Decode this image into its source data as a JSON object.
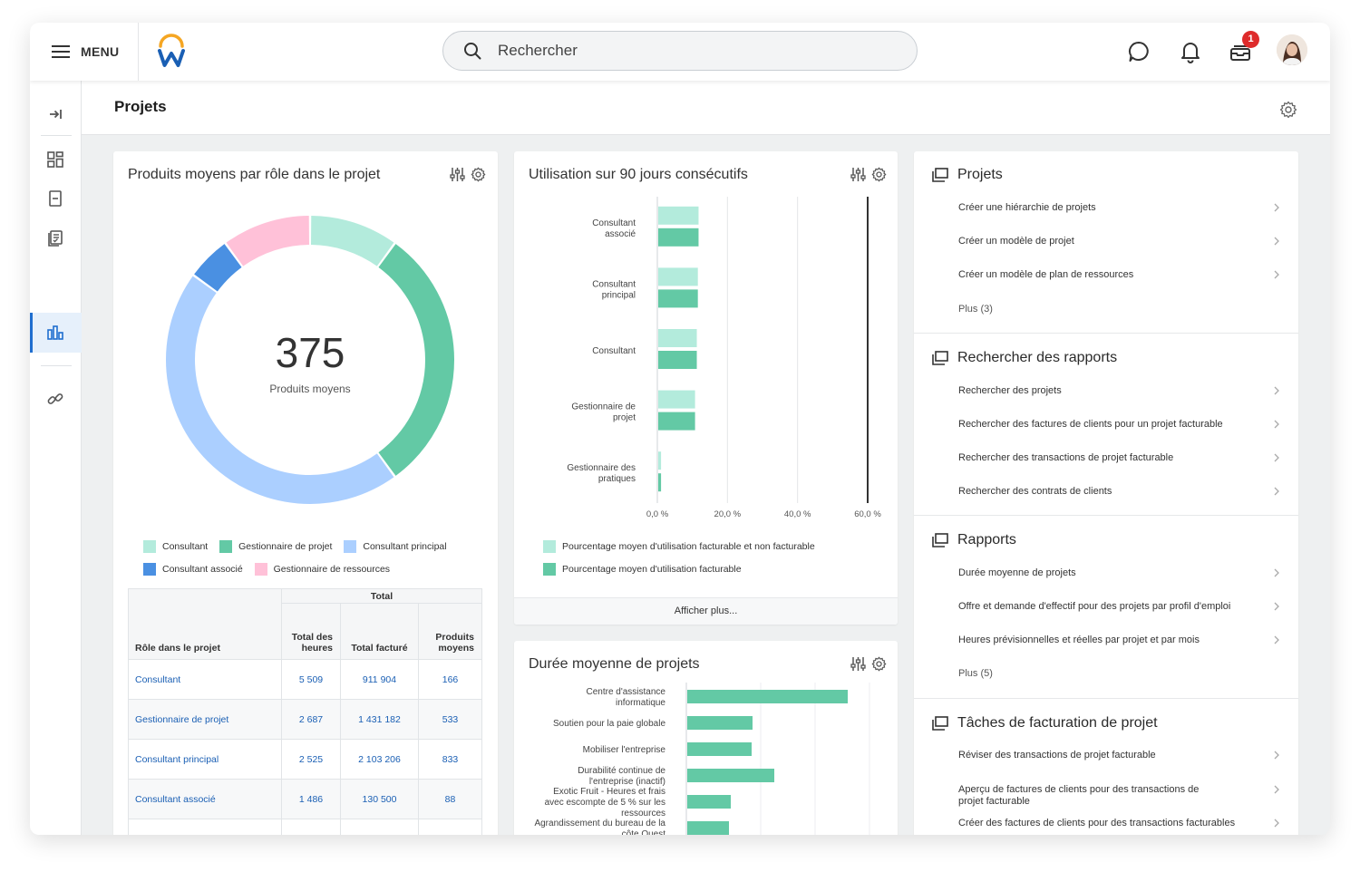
{
  "topbar": {
    "menu_label": "MENU",
    "search_placeholder": "Rechercher",
    "inbox_badge": "1"
  },
  "page": {
    "title": "Projets"
  },
  "colors": {
    "consultant": "#b3ebdc",
    "gestionnaire_projet": "#63c9a5",
    "consultant_principal": "#abcfff",
    "consultant_associe": "#4a90e2",
    "gestionnaire_ressources": "#ffc1d8",
    "accent": "#1f6ecf"
  },
  "donut_card": {
    "title": "Produits moyens par rôle dans le projet",
    "center_value": "375",
    "center_label": "Produits moyens",
    "legend": [
      "Consultant",
      "Gestionnaire de projet",
      "Consultant principal",
      "Consultant associé",
      "Gestionnaire de ressources"
    ],
    "table": {
      "group_header": "Total",
      "headers": [
        "Rôle dans le projet",
        "Total des heures",
        "Total facturé",
        "Produits moyens"
      ],
      "rows": [
        {
          "role": "Consultant",
          "hours": "5 509",
          "billed": "911 904",
          "avg": "166"
        },
        {
          "role": "Gestionnaire de projet",
          "hours": "2 687",
          "billed": "1 431 182",
          "avg": "533"
        },
        {
          "role": "Consultant principal",
          "hours": "2 525",
          "billed": "2 103 206",
          "avg": "833"
        },
        {
          "role": "Consultant associé",
          "hours": "1 486",
          "billed": "130 500",
          "avg": "88"
        }
      ]
    }
  },
  "utilisation_card": {
    "title": "Utilisation sur 90 jours consécutifs",
    "legend": [
      "Pourcentage moyen d'utilisation facturable et non facturable",
      "Pourcentage moyen d'utilisation facturable"
    ],
    "more_link": "Afficher plus..."
  },
  "duree_card": {
    "title": "Durée moyenne de projets"
  },
  "chart_data": [
    {
      "type": "pie",
      "title": "Produits moyens par rôle dans le projet",
      "categories": [
        "Consultant",
        "Gestionnaire de projet",
        "Consultant principal",
        "Consultant associé",
        "Gestionnaire de ressources"
      ],
      "values": [
        10,
        30,
        45,
        5,
        10
      ]
    },
    {
      "type": "bar",
      "title": "Utilisation sur 90 jours consécutifs",
      "categories": [
        "Consultant associé",
        "Consultant principal",
        "Consultant",
        "Gestionnaire de projet",
        "Gestionnaire des pratiques"
      ],
      "series": [
        {
          "name": "Pourcentage moyen d'utilisation facturable et non facturable",
          "values": [
            11.5,
            11.3,
            11.0,
            10.5,
            0.8
          ]
        },
        {
          "name": "Pourcentage moyen d'utilisation facturable",
          "values": [
            11.5,
            11.3,
            11.0,
            10.5,
            0.8
          ]
        }
      ],
      "xticks": [
        "0,0 %",
        "20,0 %",
        "40,0 %",
        "60,0 %"
      ],
      "xlim": [
        0,
        60
      ],
      "reference_line": 60
    },
    {
      "type": "bar",
      "title": "Durée moyenne de projets",
      "categories": [
        "Centre d'assistance informatique",
        "Soutien pour la paie globale",
        "Mobiliser l'entreprise",
        "Durabilité continue de l'entreprise (inactif)",
        "Exotic Fruit - Heures et frais avec escompte de 5 % sur les ressources",
        "Agrandissement du bureau de la côte Ouest"
      ],
      "values": [
        177,
        72,
        71,
        96,
        48,
        46
      ]
    }
  ],
  "right_panel": {
    "sections": [
      {
        "title": "Projets",
        "items": [
          "Créer une hiérarchie de projets",
          "Créer un modèle de projet",
          "Créer un modèle de plan de ressources",
          "Plus (3)"
        ]
      },
      {
        "title": "Rechercher des rapports",
        "items": [
          "Rechercher des projets",
          "Rechercher des factures de clients pour un projet facturable",
          "Rechercher des transactions de projet facturable",
          "Rechercher des contrats de clients"
        ]
      },
      {
        "title": "Rapports",
        "items": [
          "Durée moyenne de projets",
          "Offre et demande d'effectif pour des projets par profil d'emploi",
          "Heures prévisionnelles et réelles par projet et par mois",
          "Plus (5)"
        ]
      },
      {
        "title": "Tâches de facturation de projet",
        "items": [
          "Réviser des transactions de projet facturable",
          "Aperçu de factures de clients pour des transactions de projet facturable",
          "Créer des factures de clients pour des transactions facturables"
        ]
      }
    ]
  }
}
